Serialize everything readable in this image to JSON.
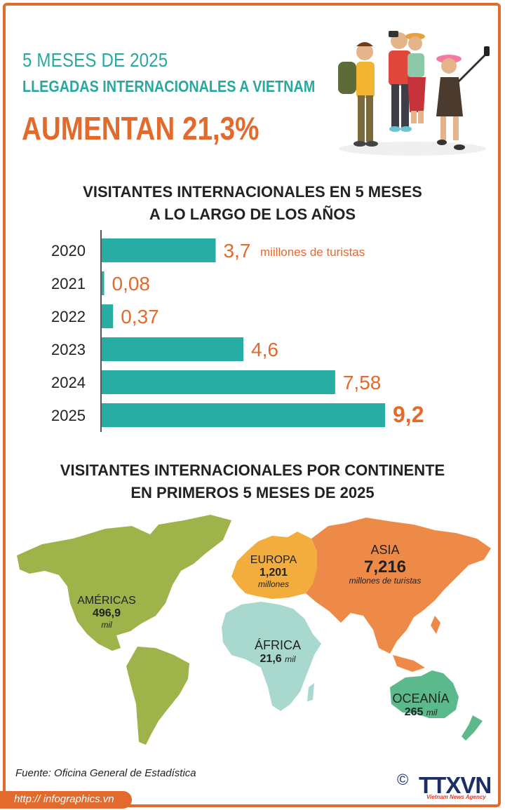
{
  "header": {
    "line1": "5 MESES DE 2025",
    "line2": "LLEGADAS INTERNACIONALES A VIETNAM",
    "line3": "AUMENTAN 21,3%"
  },
  "colors": {
    "orange": "#e26a2c",
    "teal": "#2aa89d",
    "bar": "#27ada4"
  },
  "chart_data": [
    {
      "type": "bar",
      "orientation": "horizontal",
      "title_line1": "VISITANTES INTERNACIONALES EN 5 MESES",
      "title_line2": "A LO LARGO DE LOS AÑOS",
      "categories": [
        "2020",
        "2021",
        "2022",
        "2023",
        "2024",
        "2025"
      ],
      "values": [
        3.7,
        0.08,
        0.37,
        4.6,
        7.58,
        9.2
      ],
      "value_labels": [
        "3,7",
        "0,08",
        "0,37",
        "4,6",
        "7,58",
        "9,2"
      ],
      "unit_label": "miillones de turistas",
      "xlim": [
        0,
        9.2
      ]
    },
    {
      "type": "map",
      "title_line1": "VISITANTES INTERNACIONALES POR CONTINENTE",
      "title_line2": "EN PRIMEROS 5 MESES DE 2025",
      "regions": [
        {
          "name": "AMÉRICAS",
          "value": "496,9",
          "unit": "mil",
          "color": "#9eb34a"
        },
        {
          "name": "EUROPA",
          "value": "1,201",
          "unit": "millones",
          "color": "#f3ad3d"
        },
        {
          "name": "ASIA",
          "value": "7,216",
          "unit": "millones de turistas",
          "color": "#ee8a47"
        },
        {
          "name": "ÁFRICA",
          "value": "21,6",
          "unit": "mil",
          "color": "#a9d8cf"
        },
        {
          "name": "OCEANÍA",
          "value": "265",
          "unit": "mil",
          "color": "#5bb98c"
        }
      ]
    }
  ],
  "source": "Fuente: Oficina General de Estadística",
  "footer": {
    "url": "http:// infographics.vn",
    "copyright": "©",
    "logo": "TTXVN",
    "logo_sub": "Vietnam News Agency"
  }
}
